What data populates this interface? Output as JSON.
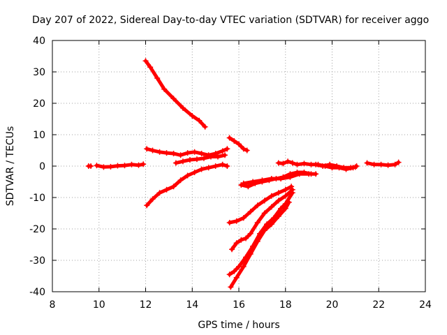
{
  "chart_data": {
    "type": "scatter",
    "title": "Day 207 of 2022, Sidereal Day-to-day VTEC variation (SDTVAR) for receiver aggo",
    "xlabel": "GPS time / hours",
    "ylabel": "SDTVAR / TECUs",
    "xlim": [
      8,
      24
    ],
    "ylim": [
      -40,
      40
    ],
    "xticks": [
      "8",
      "10",
      "12",
      "14",
      "16",
      "18",
      "20",
      "22",
      "24"
    ],
    "yticks": [
      "40",
      "30",
      "20",
      "10",
      "0",
      "-10",
      "-20",
      "-30",
      "-40"
    ],
    "grid": true,
    "marker": "plus",
    "color": "#ff0000",
    "series": [
      {
        "points": [
          [
            9.55,
            0
          ],
          [
            9.65,
            0
          ]
        ]
      },
      {
        "points": [
          [
            9.9,
            0.2
          ],
          [
            10.2,
            -0.3
          ],
          [
            10.5,
            -0.2
          ],
          [
            10.8,
            0.1
          ],
          [
            11.1,
            0.2
          ],
          [
            11.4,
            0.5
          ],
          [
            11.7,
            0.3
          ],
          [
            11.9,
            0.6
          ]
        ]
      },
      {
        "points": [
          [
            12.0,
            33.5
          ],
          [
            12.2,
            31.5
          ],
          [
            12.5,
            28.0
          ],
          [
            12.8,
            24.5
          ],
          [
            13.2,
            21.5
          ],
          [
            13.6,
            18.5
          ],
          [
            14.0,
            16.0
          ],
          [
            14.3,
            14.5
          ],
          [
            14.55,
            12.5
          ]
        ]
      },
      {
        "points": [
          [
            12.05,
            5.5
          ],
          [
            12.3,
            5.0
          ],
          [
            12.6,
            4.5
          ],
          [
            12.9,
            4.2
          ],
          [
            13.2,
            4.0
          ],
          [
            13.5,
            3.5
          ],
          [
            13.8,
            4.2
          ],
          [
            14.1,
            4.5
          ],
          [
            14.4,
            4.0
          ],
          [
            14.7,
            3.5
          ],
          [
            15.0,
            4.0
          ],
          [
            15.3,
            4.8
          ],
          [
            15.5,
            5.5
          ]
        ]
      },
      {
        "points": [
          [
            12.05,
            -12.5
          ],
          [
            12.3,
            -10.5
          ],
          [
            12.6,
            -8.5
          ],
          [
            12.9,
            -7.5
          ],
          [
            13.2,
            -6.5
          ],
          [
            13.5,
            -4.5
          ],
          [
            13.8,
            -3.0
          ],
          [
            14.1,
            -2.0
          ],
          [
            14.4,
            -1.0
          ],
          [
            14.7,
            -0.5
          ],
          [
            15.0,
            0.0
          ],
          [
            15.3,
            0.5
          ],
          [
            15.5,
            0.0
          ]
        ]
      },
      {
        "points": [
          [
            13.3,
            1.0
          ],
          [
            13.6,
            1.5
          ],
          [
            13.9,
            2.0
          ],
          [
            14.2,
            2.2
          ],
          [
            14.5,
            2.5
          ],
          [
            14.8,
            3.0
          ],
          [
            15.1,
            3.0
          ],
          [
            15.4,
            3.5
          ]
        ]
      },
      {
        "points": [
          [
            15.6,
            9.0
          ],
          [
            15.8,
            8.0
          ],
          [
            16.0,
            7.0
          ],
          [
            16.2,
            5.5
          ],
          [
            16.35,
            5.0
          ]
        ]
      },
      {
        "points": [
          [
            15.6,
            -18.0
          ],
          [
            15.9,
            -17.5
          ],
          [
            16.2,
            -16.5
          ],
          [
            16.5,
            -14.5
          ],
          [
            16.8,
            -12.5
          ],
          [
            17.1,
            -11.0
          ],
          [
            17.4,
            -9.5
          ],
          [
            17.7,
            -8.5
          ],
          [
            18.0,
            -7.5
          ],
          [
            18.25,
            -6.5
          ]
        ]
      },
      {
        "points": [
          [
            16.1,
            -6.0
          ],
          [
            16.4,
            -6.5
          ],
          [
            16.7,
            -5.5
          ],
          [
            17.0,
            -5.0
          ],
          [
            17.3,
            -4.5
          ],
          [
            17.6,
            -4.0
          ],
          [
            17.9,
            -3.5
          ],
          [
            18.2,
            -2.5
          ],
          [
            18.5,
            -2.0
          ],
          [
            18.8,
            -2.0
          ],
          [
            19.1,
            -2.5
          ],
          [
            19.3,
            -2.5
          ]
        ]
      },
      {
        "points": [
          [
            16.2,
            -5.5
          ],
          [
            16.6,
            -5.0
          ],
          [
            17.0,
            -4.5
          ],
          [
            17.4,
            -4.0
          ],
          [
            17.8,
            -4.0
          ],
          [
            18.2,
            -3.5
          ],
          [
            18.6,
            -2.5
          ],
          [
            19.0,
            -2.5
          ]
        ]
      },
      {
        "points": [
          [
            15.7,
            -26.5
          ],
          [
            15.9,
            -24.5
          ],
          [
            16.1,
            -23.5
          ],
          [
            16.3,
            -23.0
          ],
          [
            16.5,
            -21.5
          ],
          [
            16.8,
            -18.0
          ],
          [
            17.1,
            -15.0
          ],
          [
            17.4,
            -13.0
          ],
          [
            17.7,
            -11.0
          ],
          [
            18.0,
            -9.5
          ],
          [
            18.3,
            -7.5
          ]
        ]
      },
      {
        "points": [
          [
            15.6,
            -34.5
          ],
          [
            15.8,
            -33.5
          ],
          [
            16.0,
            -32.0
          ],
          [
            16.3,
            -29.0
          ],
          [
            16.6,
            -25.5
          ],
          [
            16.9,
            -21.5
          ],
          [
            17.2,
            -18.5
          ],
          [
            17.5,
            -16.5
          ],
          [
            17.8,
            -13.5
          ],
          [
            18.0,
            -12.0
          ],
          [
            18.3,
            -8.5
          ]
        ]
      },
      {
        "points": [
          [
            15.65,
            -38.5
          ],
          [
            15.9,
            -35.5
          ],
          [
            16.2,
            -32.0
          ],
          [
            16.5,
            -28.0
          ],
          [
            16.8,
            -24.0
          ],
          [
            17.1,
            -20.5
          ],
          [
            17.4,
            -18.5
          ],
          [
            17.7,
            -16.0
          ],
          [
            18.0,
            -13.5
          ],
          [
            18.15,
            -11.5
          ]
        ]
      },
      {
        "points": [
          [
            17.7,
            1.0
          ],
          [
            17.9,
            0.8
          ],
          [
            18.1,
            1.5
          ],
          [
            18.3,
            1.0
          ],
          [
            18.5,
            0.5
          ],
          [
            18.8,
            0.8
          ],
          [
            19.1,
            0.5
          ],
          [
            19.4,
            0.5
          ],
          [
            19.7,
            0.0
          ],
          [
            20.0,
            -0.5
          ],
          [
            20.3,
            -0.5
          ],
          [
            20.6,
            -1.0
          ],
          [
            20.9,
            -0.5
          ],
          [
            21.05,
            0.0
          ]
        ]
      },
      {
        "points": [
          [
            19.3,
            0.5
          ],
          [
            19.6,
            0.0
          ],
          [
            19.9,
            0.5
          ],
          [
            20.2,
            0.0
          ],
          [
            20.5,
            -0.5
          ],
          [
            20.8,
            -0.5
          ],
          [
            21.0,
            -0.3
          ]
        ]
      },
      {
        "points": [
          [
            21.5,
            1.0
          ],
          [
            21.8,
            0.5
          ],
          [
            22.1,
            0.5
          ],
          [
            22.4,
            0.3
          ],
          [
            22.7,
            0.5
          ],
          [
            22.85,
            1.2
          ]
        ]
      }
    ]
  }
}
